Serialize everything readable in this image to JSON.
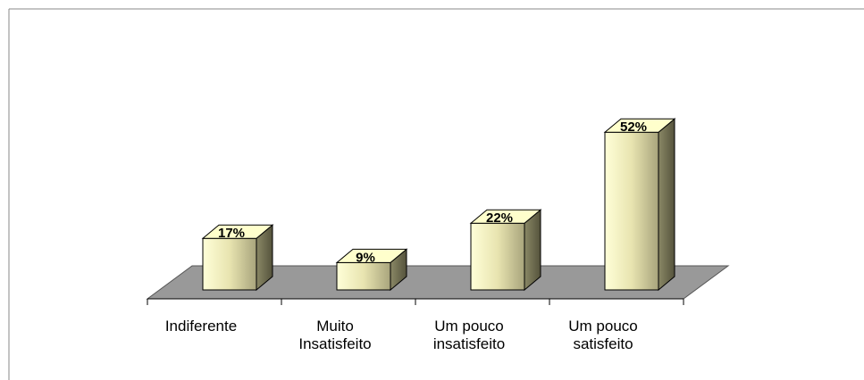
{
  "chart_data": {
    "type": "bar3d",
    "categories": [
      "Indiferente",
      "Muito\nInsatisfeito",
      "Um pouco\ninsatisfeito",
      "Um pouco\nsatisfeito"
    ],
    "values": [
      17,
      9,
      22,
      52
    ],
    "value_labels": [
      "17%",
      "9%",
      "22%",
      "52%"
    ],
    "color": "#ffffcc"
  }
}
